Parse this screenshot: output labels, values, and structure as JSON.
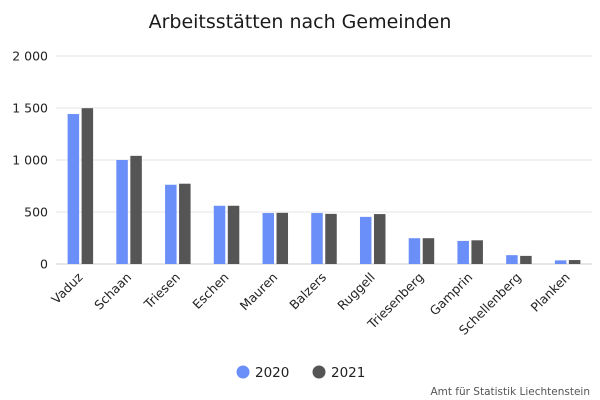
{
  "chart_data": {
    "type": "bar",
    "title": "Arbeitsstätten nach Gemeinden",
    "categories": [
      "Vaduz",
      "Schaan",
      "Triesen",
      "Eschen",
      "Mauren",
      "Balzers",
      "Ruggell",
      "Triesenberg",
      "Gamprin",
      "Schellenberg",
      "Planken"
    ],
    "series": [
      {
        "name": "2020",
        "color": "#6b8ff8",
        "values": [
          1442,
          1000,
          762,
          560,
          490,
          490,
          453,
          248,
          222,
          85,
          35
        ]
      },
      {
        "name": "2021",
        "color": "#555555",
        "values": [
          1498,
          1040,
          772,
          560,
          492,
          482,
          480,
          248,
          228,
          78,
          38
        ]
      }
    ],
    "ylim": [
      0,
      2000
    ],
    "yticks": [
      0,
      500,
      1000,
      1500,
      2000
    ],
    "ytick_labels": [
      "0",
      "500",
      "1 000",
      "1 500",
      "2 000"
    ],
    "xlabel": "",
    "ylabel": "",
    "grid": true,
    "legend_position": "bottom",
    "source": "Amt für Statistik Liechtenstein"
  }
}
